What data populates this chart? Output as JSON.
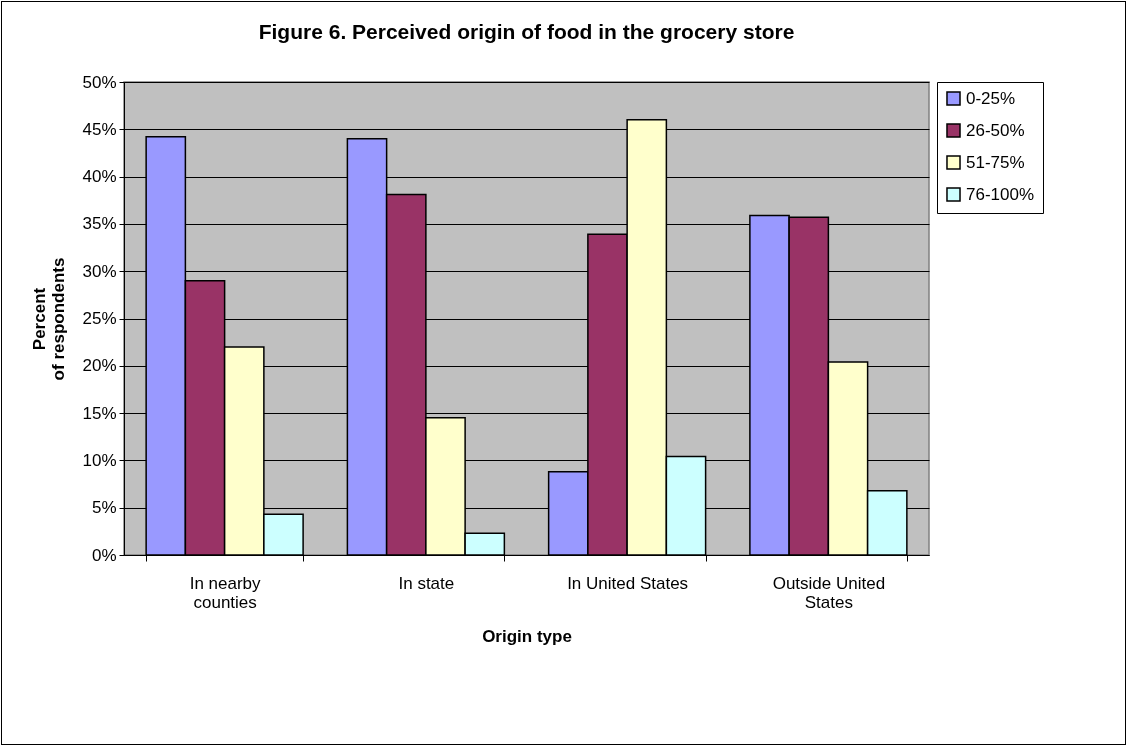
{
  "chart_data": {
    "type": "bar",
    "title": "Figure 6.  Perceived origin of food in the grocery store",
    "xlabel": "Origin type",
    "ylabel": "Percent\nof respondents",
    "categories": [
      "In nearby counties",
      "In state",
      "In United States",
      "Outside United States"
    ],
    "series": [
      {
        "name": "0-25%",
        "color": "#9999ff",
        "values": [
          44.2,
          44.0,
          8.8,
          35.9
        ]
      },
      {
        "name": "26-50%",
        "color": "#993366",
        "values": [
          29.0,
          38.1,
          33.9,
          35.7
        ]
      },
      {
        "name": "51-75%",
        "color": "#ffffcc",
        "values": [
          22.0,
          14.5,
          46.0,
          20.4
        ]
      },
      {
        "name": "76-100%",
        "color": "#ccffff",
        "values": [
          4.3,
          2.3,
          10.4,
          6.8
        ]
      }
    ],
    "ylim": [
      0,
      50
    ],
    "yticks": [
      {
        "value": 0,
        "label": "0%"
      },
      {
        "value": 5,
        "label": "5%"
      },
      {
        "value": 10,
        "label": "10%"
      },
      {
        "value": 15,
        "label": "15%"
      },
      {
        "value": 20,
        "label": "20%"
      },
      {
        "value": 25,
        "label": "25%"
      },
      {
        "value": 30,
        "label": "30%"
      },
      {
        "value": 35,
        "label": "35%"
      },
      {
        "value": 40,
        "label": "40%"
      },
      {
        "value": 45,
        "label": "45%"
      },
      {
        "value": 50,
        "label": "50%"
      }
    ],
    "grid": "y",
    "legend": "right"
  }
}
